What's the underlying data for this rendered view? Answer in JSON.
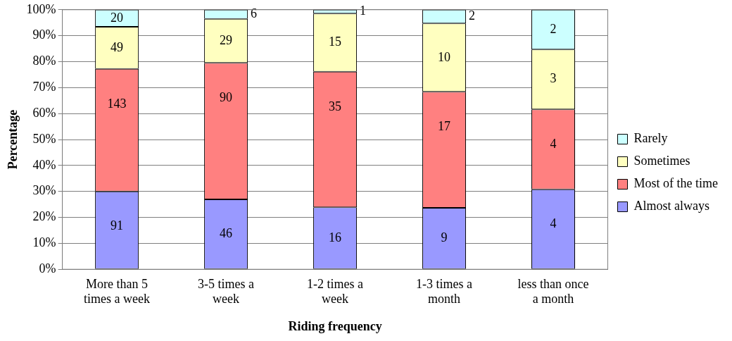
{
  "chart_data": {
    "type": "bar",
    "stacked": true,
    "xlabel": "Riding frequency",
    "ylabel": "Percentage",
    "categories": [
      "More than 5 times a week",
      "3-5 times a week",
      "1-2 times a week",
      "1-3 times a month",
      "less than once a month"
    ],
    "series": [
      {
        "name": "Almost always",
        "color": "#9999ff",
        "values": [
          30.0,
          26.9,
          23.9,
          23.7,
          30.8
        ]
      },
      {
        "name": "Most of the time",
        "color": "#ff8080",
        "values": [
          47.2,
          52.6,
          52.2,
          44.7,
          30.8
        ]
      },
      {
        "name": "Sometimes",
        "color": "#ffffc0",
        "values": [
          16.2,
          17.0,
          22.4,
          26.3,
          23.1
        ]
      },
      {
        "name": "Rarely",
        "color": "#ccffff",
        "values": [
          6.6,
          3.5,
          1.5,
          5.3,
          15.3
        ]
      }
    ],
    "annotations": [
      {
        "text": "91",
        "x": "More than 5 times a week",
        "y": 30.0
      },
      {
        "text": "143",
        "x": "More than 5 times a week",
        "y": 77.2
      },
      {
        "text": "49",
        "x": "More than 5 times a week",
        "y": 93.4
      },
      {
        "text": "20",
        "x": "More than 5 times a week",
        "y": 100.0
      },
      {
        "text": "46",
        "x": "3-5 times a week",
        "y": 26.9
      },
      {
        "text": "90",
        "x": "3-5 times a week",
        "y": 79.5
      },
      {
        "text": "29",
        "x": "3-5 times a week",
        "y": 96.5
      },
      {
        "text": "6",
        "x": "3-5 times a week",
        "y": 100.0
      },
      {
        "text": "16",
        "x": "1-2 times a week",
        "y": 23.9
      },
      {
        "text": "35",
        "x": "1-2 times a week",
        "y": 76.1
      },
      {
        "text": "15",
        "x": "1-2 times a week",
        "y": 98.5
      },
      {
        "text": "1",
        "x": "1-2 times a week",
        "y": 100.0
      },
      {
        "text": "9",
        "x": "1-3 times a month",
        "y": 23.7
      },
      {
        "text": "17",
        "x": "1-3 times a month",
        "y": 68.4
      },
      {
        "text": "10",
        "x": "1-3 times a month",
        "y": 94.7
      },
      {
        "text": "2",
        "x": "1-3 times a month",
        "y": 100.0
      },
      {
        "text": "4",
        "x": "less than once a month",
        "y": 30.8
      },
      {
        "text": "4",
        "x": "less than once a month",
        "y": 61.6
      },
      {
        "text": "3",
        "x": "less than once a month",
        "y": 84.7
      },
      {
        "text": "2",
        "x": "less than once a month",
        "y": 100.0
      }
    ],
    "ylim": [
      0,
      100
    ],
    "yticks": [
      {
        "value": 0,
        "label": "0%"
      },
      {
        "value": 10,
        "label": "10%"
      },
      {
        "value": 20,
        "label": "20%"
      },
      {
        "value": 30,
        "label": "30%"
      },
      {
        "value": 40,
        "label": "40%"
      },
      {
        "value": 50,
        "label": "50%"
      },
      {
        "value": 60,
        "label": "60%"
      },
      {
        "value": 70,
        "label": "70%"
      },
      {
        "value": 80,
        "label": "80%"
      },
      {
        "value": 90,
        "label": "90%"
      },
      {
        "value": 100,
        "label": "100%"
      }
    ],
    "grid": "y",
    "legend": "right"
  }
}
